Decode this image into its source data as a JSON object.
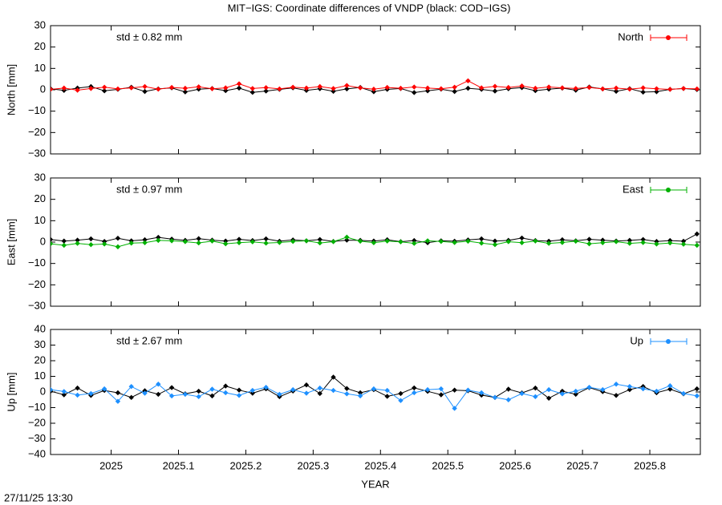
{
  "title": "MIT−IGS: Coordinate differences of VNDP (black: COD−IGS)",
  "timestamp": "27/11/25 13:30",
  "chart_data": [
    {
      "type": "line",
      "ylabel": "North [mm]",
      "annotation": "std ± 0.82 mm",
      "xlim": [
        2024.91,
        2025.875
      ],
      "xticks": [
        2025,
        2025.1,
        2025.2,
        2025.3,
        2025.4,
        2025.5,
        2025.6,
        2025.7,
        2025.8
      ],
      "ylim": [
        -30,
        30
      ],
      "yticks": [
        {
          "value": -30,
          "label": "−30"
        },
        {
          "value": -20,
          "label": "−20"
        },
        {
          "value": -10,
          "label": "−10"
        },
        0,
        10,
        20,
        30
      ],
      "x": [
        2024.91,
        2024.93,
        2024.95,
        2024.97,
        2024.99,
        2025.01,
        2025.03,
        2025.05,
        2025.07,
        2025.09,
        2025.11,
        2025.13,
        2025.15,
        2025.17,
        2025.19,
        2025.21,
        2025.23,
        2025.25,
        2025.27,
        2025.29,
        2025.31,
        2025.33,
        2025.35,
        2025.37,
        2025.39,
        2025.41,
        2025.43,
        2025.45,
        2025.47,
        2025.49,
        2025.51,
        2025.53,
        2025.55,
        2025.57,
        2025.59,
        2025.61,
        2025.63,
        2025.65,
        2025.67,
        2025.69,
        2025.71,
        2025.73,
        2025.75,
        2025.77,
        2025.79,
        2025.81,
        2025.83,
        2025.85,
        2025.87
      ],
      "series": [
        {
          "color": "#000000",
          "values": [
            0.5,
            -0.3,
            0.8,
            1.5,
            -0.5,
            0.2,
            1.2,
            -0.8,
            0.4,
            0.9,
            -1.0,
            0.3,
            0.6,
            -0.4,
            0.8,
            -1.2,
            -0.6,
            0.2,
            0.9,
            -0.3,
            0.5,
            -0.7,
            0.4,
            1.1,
            -0.9,
            0.2,
            0.6,
            -1.3,
            -0.5,
            0.3,
            -0.8,
            0.7,
            0.2,
            -0.6,
            0.5,
            1.0,
            -0.4,
            0.3,
            0.8,
            -0.2,
            1.3,
            0.4,
            -0.7,
            0.5,
            -1.1,
            -0.9,
            0.2,
            0.6,
            0.1
          ]
        },
        {
          "name": "North",
          "color": "#ff0000",
          "values": [
            0.2,
            0.8,
            -0.2,
            0.6,
            1.2,
            0.4,
            0.9,
            1.5,
            0.3,
            1.1,
            0.7,
            1.4,
            0.5,
            0.9,
            2.8,
            0.6,
            1.0,
            0.4,
            1.2,
            0.8,
            1.5,
            0.6,
            2.0,
            0.9,
            0.3,
            1.1,
            0.7,
            1.3,
            0.8,
            0.5,
            1.2,
            4.2,
            0.9,
            1.6,
            1.1,
            1.8,
            0.7,
            1.3,
            0.9,
            0.6,
            1.1,
            0.4,
            0.8,
            0.3,
            0.9,
            0.5,
            0.2,
            0.6,
            0.4
          ]
        }
      ]
    },
    {
      "type": "line",
      "ylabel": "East [mm]",
      "annotation": "std ± 0.97 mm",
      "xlim": [
        2024.91,
        2025.875
      ],
      "xticks": [
        2025,
        2025.1,
        2025.2,
        2025.3,
        2025.4,
        2025.5,
        2025.6,
        2025.7,
        2025.8
      ],
      "ylim": [
        -30,
        30
      ],
      "yticks": [
        {
          "value": -30,
          "label": "−30"
        },
        {
          "value": -20,
          "label": "−20"
        },
        {
          "value": -10,
          "label": "−10"
        },
        0,
        10,
        20,
        30
      ],
      "x": [
        2024.91,
        2024.93,
        2024.95,
        2024.97,
        2024.99,
        2025.01,
        2025.03,
        2025.05,
        2025.07,
        2025.09,
        2025.11,
        2025.13,
        2025.15,
        2025.17,
        2025.19,
        2025.21,
        2025.23,
        2025.25,
        2025.27,
        2025.29,
        2025.31,
        2025.33,
        2025.35,
        2025.37,
        2025.39,
        2025.41,
        2025.43,
        2025.45,
        2025.47,
        2025.49,
        2025.51,
        2025.53,
        2025.55,
        2025.57,
        2025.59,
        2025.61,
        2025.63,
        2025.65,
        2025.67,
        2025.69,
        2025.71,
        2025.73,
        2025.75,
        2025.77,
        2025.79,
        2025.81,
        2025.83,
        2025.85,
        2025.87
      ],
      "series": [
        {
          "color": "#000000",
          "values": [
            1.2,
            0.5,
            0.9,
            1.5,
            0.3,
            1.8,
            0.6,
            1.1,
            2.2,
            1.4,
            0.8,
            1.6,
            0.9,
            0.5,
            1.3,
            0.7,
            1.5,
            0.4,
            1.0,
            0.6,
            1.2,
            0.3,
            0.9,
            0.8,
            0.5,
            1.1,
            0.2,
            0.7,
            -0.3,
            0.6,
            0.4,
            1.0,
            1.5,
            0.5,
            0.8,
            1.9,
            0.7,
            0.4,
            1.1,
            0.6,
            1.3,
            0.9,
            0.5,
            0.8,
            1.2,
            0.3,
            0.7,
            0.4,
            3.8
          ]
        },
        {
          "name": "East",
          "color": "#00b000",
          "values": [
            -0.8,
            -1.5,
            -0.6,
            -1.2,
            -0.9,
            -2.2,
            -0.5,
            -0.3,
            0.8,
            0.6,
            0.2,
            -0.4,
            0.5,
            -0.8,
            -0.3,
            0.1,
            -0.5,
            -0.2,
            0.3,
            0.6,
            -0.4,
            0.2,
            2.3,
            0.4,
            -0.3,
            0.5,
            0.1,
            -0.6,
            0.6,
            0.3,
            -0.2,
            0.4,
            -0.5,
            -1.2,
            0.2,
            -0.3,
            0.5,
            -0.6,
            -0.2,
            0.4,
            -0.8,
            -0.3,
            0.2,
            -0.6,
            -0.2,
            -0.9,
            -0.4,
            -1.0,
            -1.5
          ]
        }
      ]
    },
    {
      "type": "line",
      "ylabel": "Up [mm]",
      "xlabel": "YEAR",
      "annotation": "std ± 2.67 mm",
      "xlim": [
        2024.91,
        2025.875
      ],
      "xticks": [
        2025,
        2025.1,
        2025.2,
        2025.3,
        2025.4,
        2025.5,
        2025.6,
        2025.7,
        2025.8
      ],
      "ylim": [
        -40,
        40
      ],
      "yticks": [
        {
          "value": -40,
          "label": "−40"
        },
        {
          "value": -30,
          "label": "−30"
        },
        {
          "value": -20,
          "label": "−20"
        },
        {
          "value": -10,
          "label": "−10"
        },
        0,
        10,
        20,
        30,
        40
      ],
      "x": [
        2024.91,
        2024.93,
        2024.95,
        2024.97,
        2024.99,
        2025.01,
        2025.03,
        2025.05,
        2025.07,
        2025.09,
        2025.11,
        2025.13,
        2025.15,
        2025.17,
        2025.19,
        2025.21,
        2025.23,
        2025.25,
        2025.27,
        2025.29,
        2025.31,
        2025.33,
        2025.35,
        2025.37,
        2025.39,
        2025.41,
        2025.43,
        2025.45,
        2025.47,
        2025.49,
        2025.51,
        2025.53,
        2025.55,
        2025.57,
        2025.59,
        2025.61,
        2025.63,
        2025.65,
        2025.67,
        2025.69,
        2025.71,
        2025.73,
        2025.75,
        2025.77,
        2025.79,
        2025.81,
        2025.83,
        2025.85,
        2025.87
      ],
      "series": [
        {
          "color": "#000000",
          "values": [
            0.5,
            -1.8,
            2.5,
            -2.2,
            1.0,
            -0.5,
            -3.5,
            0.8,
            -1.5,
            2.8,
            -1.2,
            0.5,
            -2.5,
            3.8,
            1.2,
            -0.8,
            2.0,
            -3.0,
            0.6,
            4.5,
            -1.0,
            9.5,
            2.2,
            -0.5,
            1.5,
            -2.8,
            -1.0,
            2.6,
            0.4,
            -1.8,
            1.2,
            0.8,
            -2.0,
            -3.5,
            1.8,
            -0.6,
            2.5,
            -4.0,
            0.5,
            -1.5,
            2.8,
            0.2,
            -2.2,
            1.5,
            3.5,
            -0.5,
            1.8,
            -1.2,
            2.0
          ]
        },
        {
          "name": "Up",
          "color": "#1e90ff",
          "values": [
            1.5,
            0.3,
            -2.0,
            -1.0,
            2.0,
            -6.0,
            3.5,
            -0.8,
            5.0,
            -2.5,
            -1.5,
            -3.0,
            1.8,
            -0.5,
            -2.2,
            1.0,
            3.0,
            -1.5,
            1.5,
            -0.8,
            2.5,
            1.0,
            -1.2,
            -2.5,
            2.0,
            1.0,
            -5.5,
            -0.5,
            1.5,
            2.0,
            -10.5,
            1.2,
            -0.5,
            -3.5,
            -5.0,
            -1.0,
            -3.0,
            1.5,
            -1.2,
            0.5,
            3.0,
            1.5,
            5.0,
            3.5,
            2.0,
            0.5,
            4.0,
            -1.0,
            -2.5
          ]
        }
      ]
    }
  ]
}
